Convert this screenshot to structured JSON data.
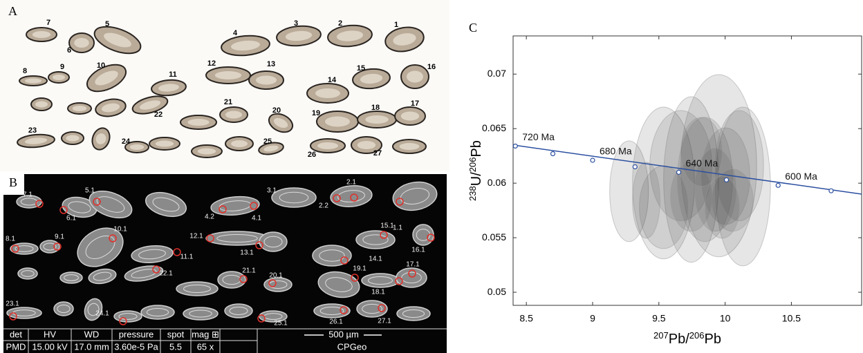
{
  "panels": {
    "a": {
      "label": "A",
      "grain_labels": [
        "1",
        "2",
        "3",
        "4",
        "5",
        "6",
        "7",
        "8",
        "9",
        "10",
        "11",
        "12",
        "13",
        "14",
        "15",
        "16",
        "17",
        "18",
        "19",
        "20",
        "21",
        "22",
        "23",
        "24",
        "25",
        "26",
        "27"
      ]
    },
    "b": {
      "label": "B",
      "spot_labels": [
        "7.1",
        "5.1",
        "6.1",
        "3.1",
        "2.1",
        "2.2",
        "4.2",
        "4.1",
        "1.1",
        "8.1",
        "9.1",
        "10.1",
        "12.1",
        "11.1",
        "13.1",
        "15.1",
        "16.1",
        "14.1",
        "22.1",
        "21.1",
        "20.1",
        "19.1",
        "17.1",
        "18.1",
        "23.1",
        "24.1",
        "25.1",
        "26.1",
        "27.1"
      ],
      "info": {
        "headers": [
          "det",
          "HV",
          "WD",
          "pressure",
          "spot",
          "mag ⊞"
        ],
        "values": [
          "PMD",
          "15.00 kV",
          "17.0 mm",
          "3.60e-5 Pa",
          "5.5",
          "65 x"
        ],
        "scale": "500 µm",
        "lab": "CPGeo"
      }
    },
    "c": {
      "label": "C"
    }
  },
  "chart_data": {
    "type": "concordia",
    "x_label": [
      "207",
      "Pb/",
      "206",
      "Pb"
    ],
    "y_label": [
      "238",
      "U/",
      "206",
      "Pb"
    ],
    "xlim": [
      8.4,
      11.03
    ],
    "ylim": [
      0.0488,
      0.0735
    ],
    "xticks": [
      8.5,
      9,
      9.5,
      10,
      10.5
    ],
    "yticks": [
      0.05,
      0.055,
      0.06,
      0.065,
      0.07
    ],
    "line": {
      "color": "#2b4fa0",
      "x": [
        8.4,
        11.03
      ],
      "y": [
        0.0635,
        0.059
      ]
    },
    "markers": {
      "x": [
        8.417,
        8.7,
        9.0,
        9.32,
        9.65,
        10.01,
        10.4,
        10.8
      ],
      "y": [
        0.0634,
        0.0627,
        0.0621,
        0.0615,
        0.061,
        0.0603,
        0.0598,
        0.0593
      ],
      "labels": [
        "720 Ma",
        null,
        "680 Ma",
        null,
        "640 Ma",
        null,
        "600 Ma",
        null
      ]
    },
    "ellipses": {
      "color": "#3a3a3a",
      "x": [
        9.275,
        9.535,
        9.744,
        9.952,
        10.134,
        9.535,
        9.666,
        9.848,
        10.004,
        10.108,
        9.744,
        9.926,
        10.056,
        9.405,
        9.822,
        9.978
      ],
      "y": [
        0.05926,
        0.06002,
        0.06034,
        0.0616,
        0.0597,
        0.0578,
        0.0616,
        0.06034,
        0.06065,
        0.0616,
        0.05875,
        0.05939,
        0.05844,
        0.05844,
        0.06287,
        0.0578
      ],
      "x_err": [
        0.146,
        0.234,
        0.208,
        0.286,
        0.208,
        0.182,
        0.234,
        0.208,
        0.182,
        0.182,
        0.156,
        0.156,
        0.156,
        0.104,
        0.156,
        0.13
      ],
      "y_err": [
        0.00462,
        0.00696,
        0.00759,
        0.00835,
        0.00728,
        0.0038,
        0.00506,
        0.0057,
        0.00443,
        0.00506,
        0.00316,
        0.0038,
        0.00285,
        0.00348,
        0.00316,
        0.00285
      ]
    }
  }
}
